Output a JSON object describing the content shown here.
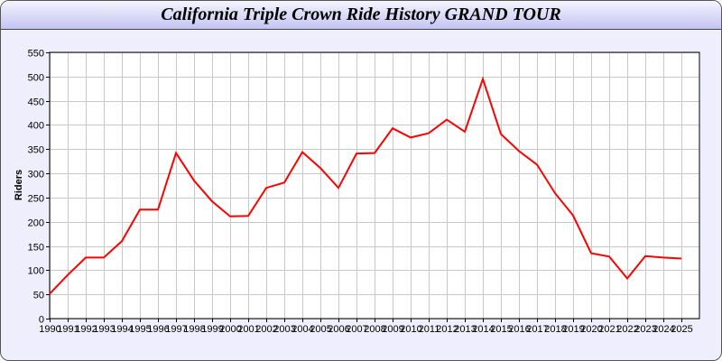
{
  "chart_data": {
    "type": "line",
    "title": "California Triple Crown Ride History GRAND TOUR",
    "xlabel": "",
    "ylabel": "Riders",
    "ylim": [
      0,
      550
    ],
    "yticks": [
      0,
      50,
      100,
      150,
      200,
      250,
      300,
      350,
      400,
      450,
      500,
      550
    ],
    "grid": true,
    "line_color": "#ff0000",
    "categories": [
      "1990",
      "1991",
      "1992",
      "1993",
      "1994",
      "1995",
      "1996",
      "1997",
      "1998",
      "1999",
      "2000",
      "2001",
      "2002",
      "2003",
      "2004",
      "2005",
      "2006",
      "2007",
      "2008",
      "2009",
      "2010",
      "2011",
      "2012",
      "2013",
      "2014",
      "2015",
      "2016",
      "2017",
      "2018",
      "2019",
      "2020",
      "2021",
      "2022",
      "2023",
      "2024",
      "2025"
    ],
    "values": [
      51,
      90,
      126,
      126,
      160,
      225,
      225,
      342,
      285,
      242,
      211,
      212,
      270,
      281,
      344,
      311,
      270,
      341,
      342,
      393,
      374,
      383,
      411,
      386,
      495,
      381,
      346,
      318,
      259,
      213,
      135,
      128,
      83,
      129,
      126,
      124
    ]
  }
}
